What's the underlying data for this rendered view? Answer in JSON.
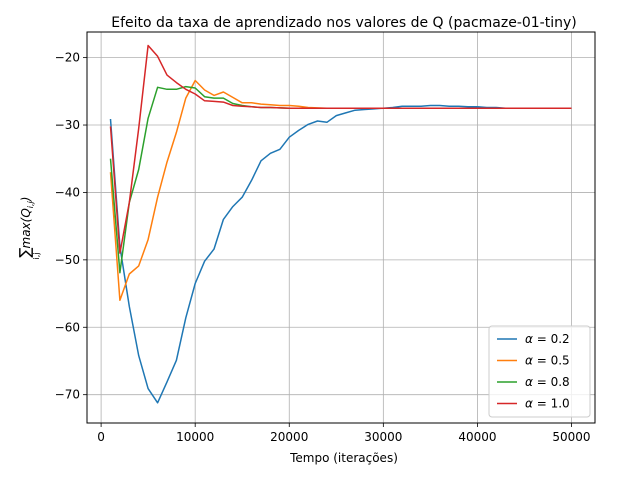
{
  "chart_data": {
    "type": "line",
    "title": "Efeito da taxa de aprendizado nos valores de Q (pacmaze-01-tiny)",
    "xlabel": "Tempo (iterações)",
    "ylabel": "∑max(Q(i,j))",
    "ylabel_parts": {
      "sum": "∑",
      "sub": "i,j",
      "func": "max(Q",
      "func_sub": "i,j",
      "close": ")"
    },
    "xlim": [
      -1500,
      52500
    ],
    "ylim": [
      -74.2,
      -16.2
    ],
    "xticks": [
      0,
      10000,
      20000,
      30000,
      40000,
      50000
    ],
    "xtick_labels": [
      "0",
      "10000",
      "20000",
      "30000",
      "40000",
      "50000"
    ],
    "yticks": [
      -70,
      -60,
      -50,
      -40,
      -30,
      -20
    ],
    "ytick_labels": [
      "−70",
      "−60",
      "−50",
      "−40",
      "−30",
      "−20"
    ],
    "grid": true,
    "legend_position": "lower-right",
    "series": [
      {
        "name": "α = 0.2",
        "legend_parts": {
          "sym": "α",
          "rest": " = 0.2"
        },
        "color": "#1f77b4",
        "x": [
          1000,
          2000,
          3000,
          4000,
          5000,
          6000,
          7000,
          8000,
          9000,
          10000,
          11000,
          12000,
          13000,
          14000,
          15000,
          16000,
          17000,
          18000,
          19000,
          20000,
          21000,
          22000,
          23000,
          24000,
          25000,
          26000,
          27000,
          28000,
          29000,
          30000,
          31000,
          32000,
          33000,
          34000,
          35000,
          36000,
          37000,
          38000,
          39000,
          40000,
          41000,
          42000,
          43000,
          44000,
          45000,
          46000,
          47000,
          48000,
          49000,
          50000
        ],
        "values": [
          -29.1,
          -48.0,
          -56.9,
          -64.2,
          -69.1,
          -71.2,
          -68.1,
          -64.9,
          -58.6,
          -53.5,
          -50.2,
          -48.4,
          -44.0,
          -42.1,
          -40.7,
          -38.2,
          -35.3,
          -34.2,
          -33.6,
          -31.8,
          -30.8,
          -29.9,
          -29.4,
          -29.6,
          -28.6,
          -28.2,
          -27.8,
          -27.7,
          -27.6,
          -27.5,
          -27.4,
          -27.2,
          -27.2,
          -27.2,
          -27.1,
          -27.1,
          -27.2,
          -27.2,
          -27.3,
          -27.3,
          -27.4,
          -27.4,
          -27.5,
          -27.5,
          -27.5,
          -27.5,
          -27.5,
          -27.5,
          -27.5,
          -27.5
        ]
      },
      {
        "name": "α = 0.5",
        "legend_parts": {
          "sym": "α",
          "rest": " = 0.5"
        },
        "color": "#ff7f0e",
        "x": [
          1000,
          2000,
          3000,
          4000,
          5000,
          6000,
          7000,
          8000,
          9000,
          10000,
          11000,
          12000,
          13000,
          14000,
          15000,
          16000,
          17000,
          18000,
          19000,
          20000,
          21000,
          22000,
          24000,
          26000,
          28000,
          30000,
          35000,
          40000,
          45000,
          50000
        ],
        "values": [
          -37.0,
          -56.0,
          -52.1,
          -50.9,
          -47.0,
          -40.7,
          -35.5,
          -31.1,
          -26.0,
          -23.4,
          -24.8,
          -25.6,
          -25.1,
          -25.9,
          -26.7,
          -26.7,
          -26.9,
          -27.0,
          -27.1,
          -27.1,
          -27.2,
          -27.4,
          -27.5,
          -27.5,
          -27.5,
          -27.5,
          -27.5,
          -27.5,
          -27.5,
          -27.5
        ]
      },
      {
        "name": "α = 0.8",
        "legend_parts": {
          "sym": "α",
          "rest": " = 0.8"
        },
        "color": "#2ca02c",
        "x": [
          1000,
          2000,
          3000,
          4000,
          5000,
          6000,
          7000,
          8000,
          9000,
          10000,
          11000,
          12000,
          13000,
          14000,
          15000,
          16000,
          17000,
          18000,
          20000,
          22000,
          25000,
          30000,
          35000,
          40000,
          45000,
          50000
        ],
        "values": [
          -35.0,
          -51.9,
          -41.5,
          -36.6,
          -29.0,
          -24.4,
          -24.7,
          -24.7,
          -24.3,
          -24.5,
          -25.8,
          -26.0,
          -26.0,
          -26.8,
          -27.1,
          -27.3,
          -27.4,
          -27.4,
          -27.5,
          -27.5,
          -27.5,
          -27.5,
          -27.5,
          -27.5,
          -27.5,
          -27.5
        ]
      },
      {
        "name": "α = 1.0",
        "legend_parts": {
          "sym": "α",
          "rest": " = 1.0"
        },
        "color": "#d62728",
        "x": [
          1000,
          2000,
          3000,
          4000,
          5000,
          6000,
          7000,
          8000,
          9000,
          10000,
          11000,
          12000,
          13000,
          14000,
          15000,
          16000,
          17000,
          18000,
          20000,
          22000,
          25000,
          30000,
          35000,
          40000,
          45000,
          50000
        ],
        "values": [
          -30.2,
          -49.0,
          -41.5,
          -30.5,
          -18.2,
          -19.8,
          -22.6,
          -23.7,
          -24.7,
          -25.4,
          -26.4,
          -26.5,
          -26.6,
          -27.1,
          -27.2,
          -27.3,
          -27.4,
          -27.4,
          -27.5,
          -27.5,
          -27.5,
          -27.5,
          -27.5,
          -27.5,
          -27.5,
          -27.5
        ]
      }
    ]
  }
}
